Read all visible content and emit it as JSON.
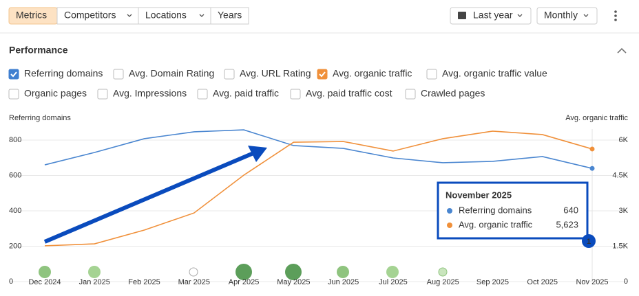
{
  "toolbar": {
    "tabs": [
      {
        "label": "Metrics",
        "active": true
      },
      {
        "label": "Competitors",
        "dropdown": true
      },
      {
        "label": "Locations",
        "dropdown": true
      },
      {
        "label": "Years"
      }
    ],
    "period": "Last year",
    "interval": "Monthly"
  },
  "section": {
    "title": "Performance",
    "metrics": [
      {
        "label": "Referring domains",
        "checked": true,
        "color": "#3f7fd0"
      },
      {
        "label": "Avg. Domain Rating",
        "checked": false
      },
      {
        "label": "Avg. URL Rating",
        "checked": false
      },
      {
        "label": "Avg. organic traffic",
        "checked": true,
        "color": "#f0903a"
      },
      {
        "label": "Avg. organic traffic value",
        "checked": false
      },
      {
        "label": "Organic pages",
        "checked": false
      },
      {
        "label": "Avg. Impressions",
        "checked": false
      },
      {
        "label": "Avg. paid traffic",
        "checked": false
      },
      {
        "label": "Avg. paid traffic cost",
        "checked": false
      },
      {
        "label": "Crawled pages",
        "checked": false
      }
    ]
  },
  "chart_data": {
    "type": "line",
    "y_label": "Referring domains",
    "y2_label": "Avg. organic traffic",
    "categories": [
      "Dec 2024",
      "Jan 2025",
      "Feb 2025",
      "Mar 2025",
      "Apr 2025",
      "May 2025",
      "Jun 2025",
      "Jul 2025",
      "Aug 2025",
      "Sep 2025",
      "Oct 2025",
      "Nov 2025"
    ],
    "series": [
      {
        "name": "Referring domains",
        "color": "#4a86d0",
        "values": [
          660,
          730,
          808,
          847,
          858,
          769,
          753,
          699,
          672,
          680,
          707,
          640
        ]
      },
      {
        "name": "Avg. organic traffic",
        "color": "#f0903a",
        "axis": "y2",
        "values": [
          1515,
          1600,
          2185,
          2910,
          4515,
          5910,
          5940,
          5535,
          6060,
          6380,
          6235,
          5623
        ],
        "value_labels": [
          null,
          null,
          null,
          null,
          null,
          null,
          null,
          null,
          null,
          null,
          null,
          "5,623"
        ]
      }
    ],
    "ylim": [
      0,
      880
    ],
    "yticks": [
      0,
      200,
      400,
      600,
      800
    ],
    "y2lim": [
      0,
      6600
    ],
    "y2ticks": [
      0,
      {
        "value": 1500,
        "label": "1.5K"
      },
      {
        "value": 3000,
        "label": "3K"
      },
      {
        "value": 4500,
        "label": "4.5K"
      },
      {
        "value": 6000,
        "label": "6K"
      }
    ],
    "grid": true,
    "tooltip": {
      "title": "November 2025",
      "index": 11
    },
    "annotation": "1"
  }
}
